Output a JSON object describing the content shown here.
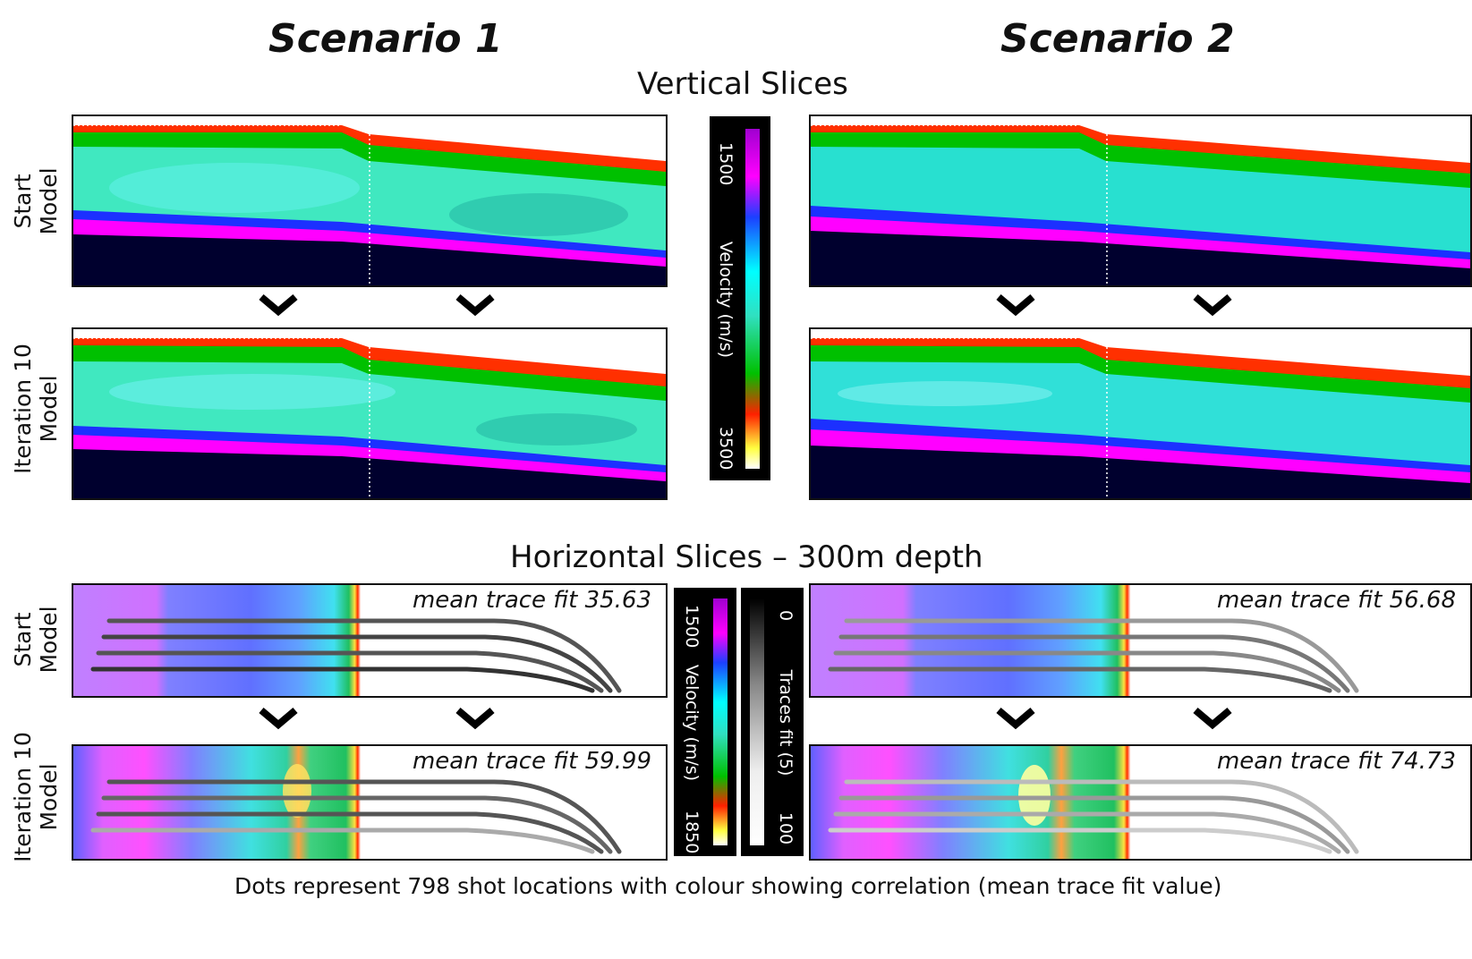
{
  "scenario1_title": "Scenario 1",
  "scenario2_title": "Scenario 2",
  "vertical_title": "Vertical Slices",
  "horizontal_title": "Horizontal Slices – 300m depth",
  "row_labels": {
    "start": [
      "Start",
      "Model"
    ],
    "iter": [
      "Iteration 10",
      "Model"
    ]
  },
  "vertical_colorbar": {
    "min_label": "1500",
    "max_label": "3500",
    "title": "Velocity (m/s)"
  },
  "horizontal_velocity_colorbar": {
    "min_label": "1500",
    "max_label": "1850",
    "title": "Velocity (m/s)"
  },
  "traces_colorbar": {
    "min_label": "0",
    "max_label": "100",
    "title": "Traces fit (5)"
  },
  "fits": {
    "s1_start": "mean trace fit 35.63",
    "s1_iter": "mean trace fit 59.99",
    "s2_start": "mean trace fit 56.68",
    "s2_iter": "mean trace fit 74.73"
  },
  "caption": "Dots represent 798 shot locations with colour showing correlation (mean trace fit value)",
  "colors": {
    "seabed": "#00002e",
    "panel_border": "#111111"
  }
}
